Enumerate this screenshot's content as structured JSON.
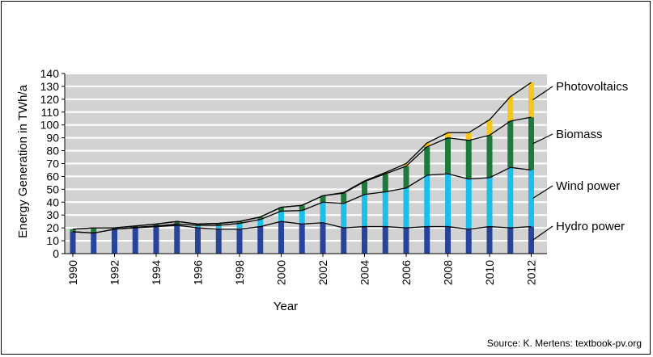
{
  "source_note": "Source: K. Mertens: textbook-pv.org",
  "colors": {
    "hydro": "#27449a",
    "wind": "#1cbfe8",
    "biomass": "#1e7a3c",
    "pv": "#f5c71a",
    "plot_bg": "#d2d2d2",
    "grid": "#ffffff",
    "line": "#000000"
  },
  "chart_data": {
    "type": "bar",
    "stacked": true,
    "xlabel": "Year",
    "ylabel": "Energy Generation in TWh/a",
    "ylim": [
      0,
      140
    ],
    "yticks": [
      0,
      10,
      20,
      30,
      40,
      50,
      60,
      70,
      80,
      90,
      100,
      110,
      120,
      130,
      140
    ],
    "x_tick_labels": [
      "1990",
      "1992",
      "1994",
      "1996",
      "1998",
      "2000",
      "2002",
      "2004",
      "2006",
      "2008",
      "2010",
      "2012"
    ],
    "grid": true,
    "categories": [
      1990,
      1991,
      1992,
      1993,
      1994,
      1995,
      1996,
      1997,
      1998,
      1999,
      2000,
      2001,
      2002,
      2003,
      2004,
      2005,
      2006,
      2007,
      2008,
      2009,
      2010,
      2011,
      2012
    ],
    "series": [
      {
        "name": "Hydro power",
        "color": "#27449a",
        "values": [
          17,
          16,
          19,
          20,
          21,
          22,
          20,
          19,
          19,
          21,
          25,
          23,
          24,
          20,
          21,
          21,
          20,
          21,
          21,
          19,
          21,
          20,
          21
        ]
      },
      {
        "name": "Wind power",
        "color": "#1cbfe8",
        "values": [
          0,
          0,
          0,
          0.5,
          0.5,
          1,
          2,
          3,
          4.5,
          5.5,
          8,
          10.5,
          16,
          19,
          25,
          27,
          31,
          40,
          41,
          39,
          38,
          47,
          44
        ]
      },
      {
        "name": "Biomass",
        "color": "#1e7a3c",
        "values": [
          2,
          4,
          1,
          1,
          1.5,
          2,
          1,
          1.5,
          1.5,
          2,
          3,
          4,
          5,
          8,
          10,
          14,
          17,
          22,
          28,
          30,
          33,
          36,
          41
        ]
      },
      {
        "name": "Photovoltaics",
        "color": "#f5c71a",
        "values": [
          0,
          0,
          0,
          0,
          0,
          0,
          0,
          0,
          0,
          0,
          0,
          0,
          0,
          0.5,
          0.5,
          1,
          2,
          3,
          4,
          6,
          12,
          19,
          27
        ]
      }
    ],
    "legend": [
      "Photovoltaics",
      "Biomass",
      "Wind power",
      "Hydro power"
    ],
    "legend_placement": "right"
  }
}
